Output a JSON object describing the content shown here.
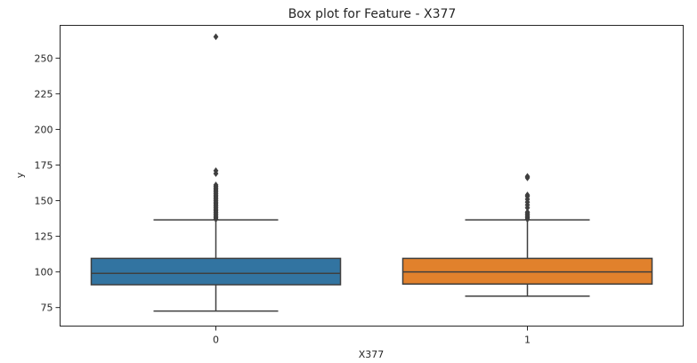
{
  "chart_data": {
    "type": "box",
    "title": "Box plot for Feature - X377",
    "xlabel": "X377",
    "ylabel": "y",
    "ylim": [
      62,
      273
    ],
    "yticks": [
      75,
      100,
      125,
      150,
      175,
      200,
      225,
      250
    ],
    "grid": false,
    "legend": "none",
    "categories": [
      "0",
      "1"
    ],
    "colors": [
      "#3274a1",
      "#e1812c"
    ],
    "boxes": [
      {
        "category": "0",
        "whisker_low": 72.5,
        "q1": 91,
        "median": 99,
        "q3": 109.5,
        "whisker_high": 136.5,
        "outliers": [
          137,
          138,
          139,
          140,
          141,
          142,
          143,
          144,
          145,
          146,
          147,
          148,
          149,
          150,
          151,
          152,
          153,
          154,
          155,
          156,
          157,
          158,
          159,
          160,
          161,
          169,
          171,
          265
        ]
      },
      {
        "category": "1",
        "whisker_low": 83,
        "q1": 91.5,
        "median": 100,
        "q3": 109.5,
        "whisker_high": 136.5,
        "outliers": [
          137,
          138,
          139,
          140,
          141,
          142,
          145,
          147,
          149,
          151,
          153,
          154,
          166,
          167
        ]
      }
    ]
  }
}
